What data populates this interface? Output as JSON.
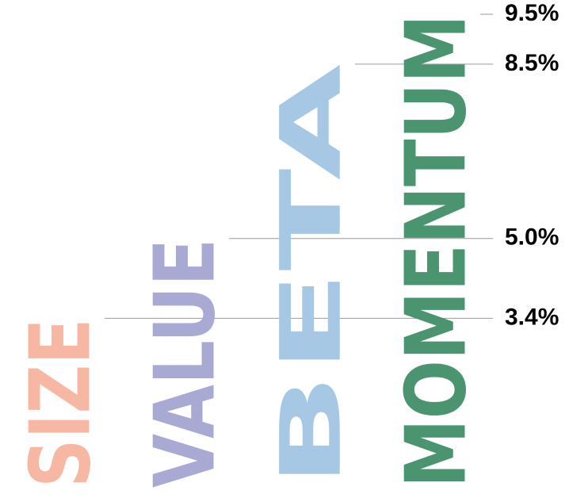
{
  "chart_data": {
    "type": "bar",
    "categories": [
      "SIZE",
      "VALUE",
      "BETA",
      "MOMENTUM"
    ],
    "values": [
      3.4,
      5.0,
      8.5,
      9.5
    ],
    "value_labels": [
      "3.4%",
      "5.0%",
      "8.5%",
      "9.5%"
    ],
    "colors": [
      "#f7b8a3",
      "#a9aad3",
      "#a7c8e4",
      "#4a9470"
    ],
    "title": "",
    "xlabel": "",
    "ylabel": "",
    "ylim": [
      0,
      9.5
    ],
    "grid": false,
    "legend": "none"
  }
}
